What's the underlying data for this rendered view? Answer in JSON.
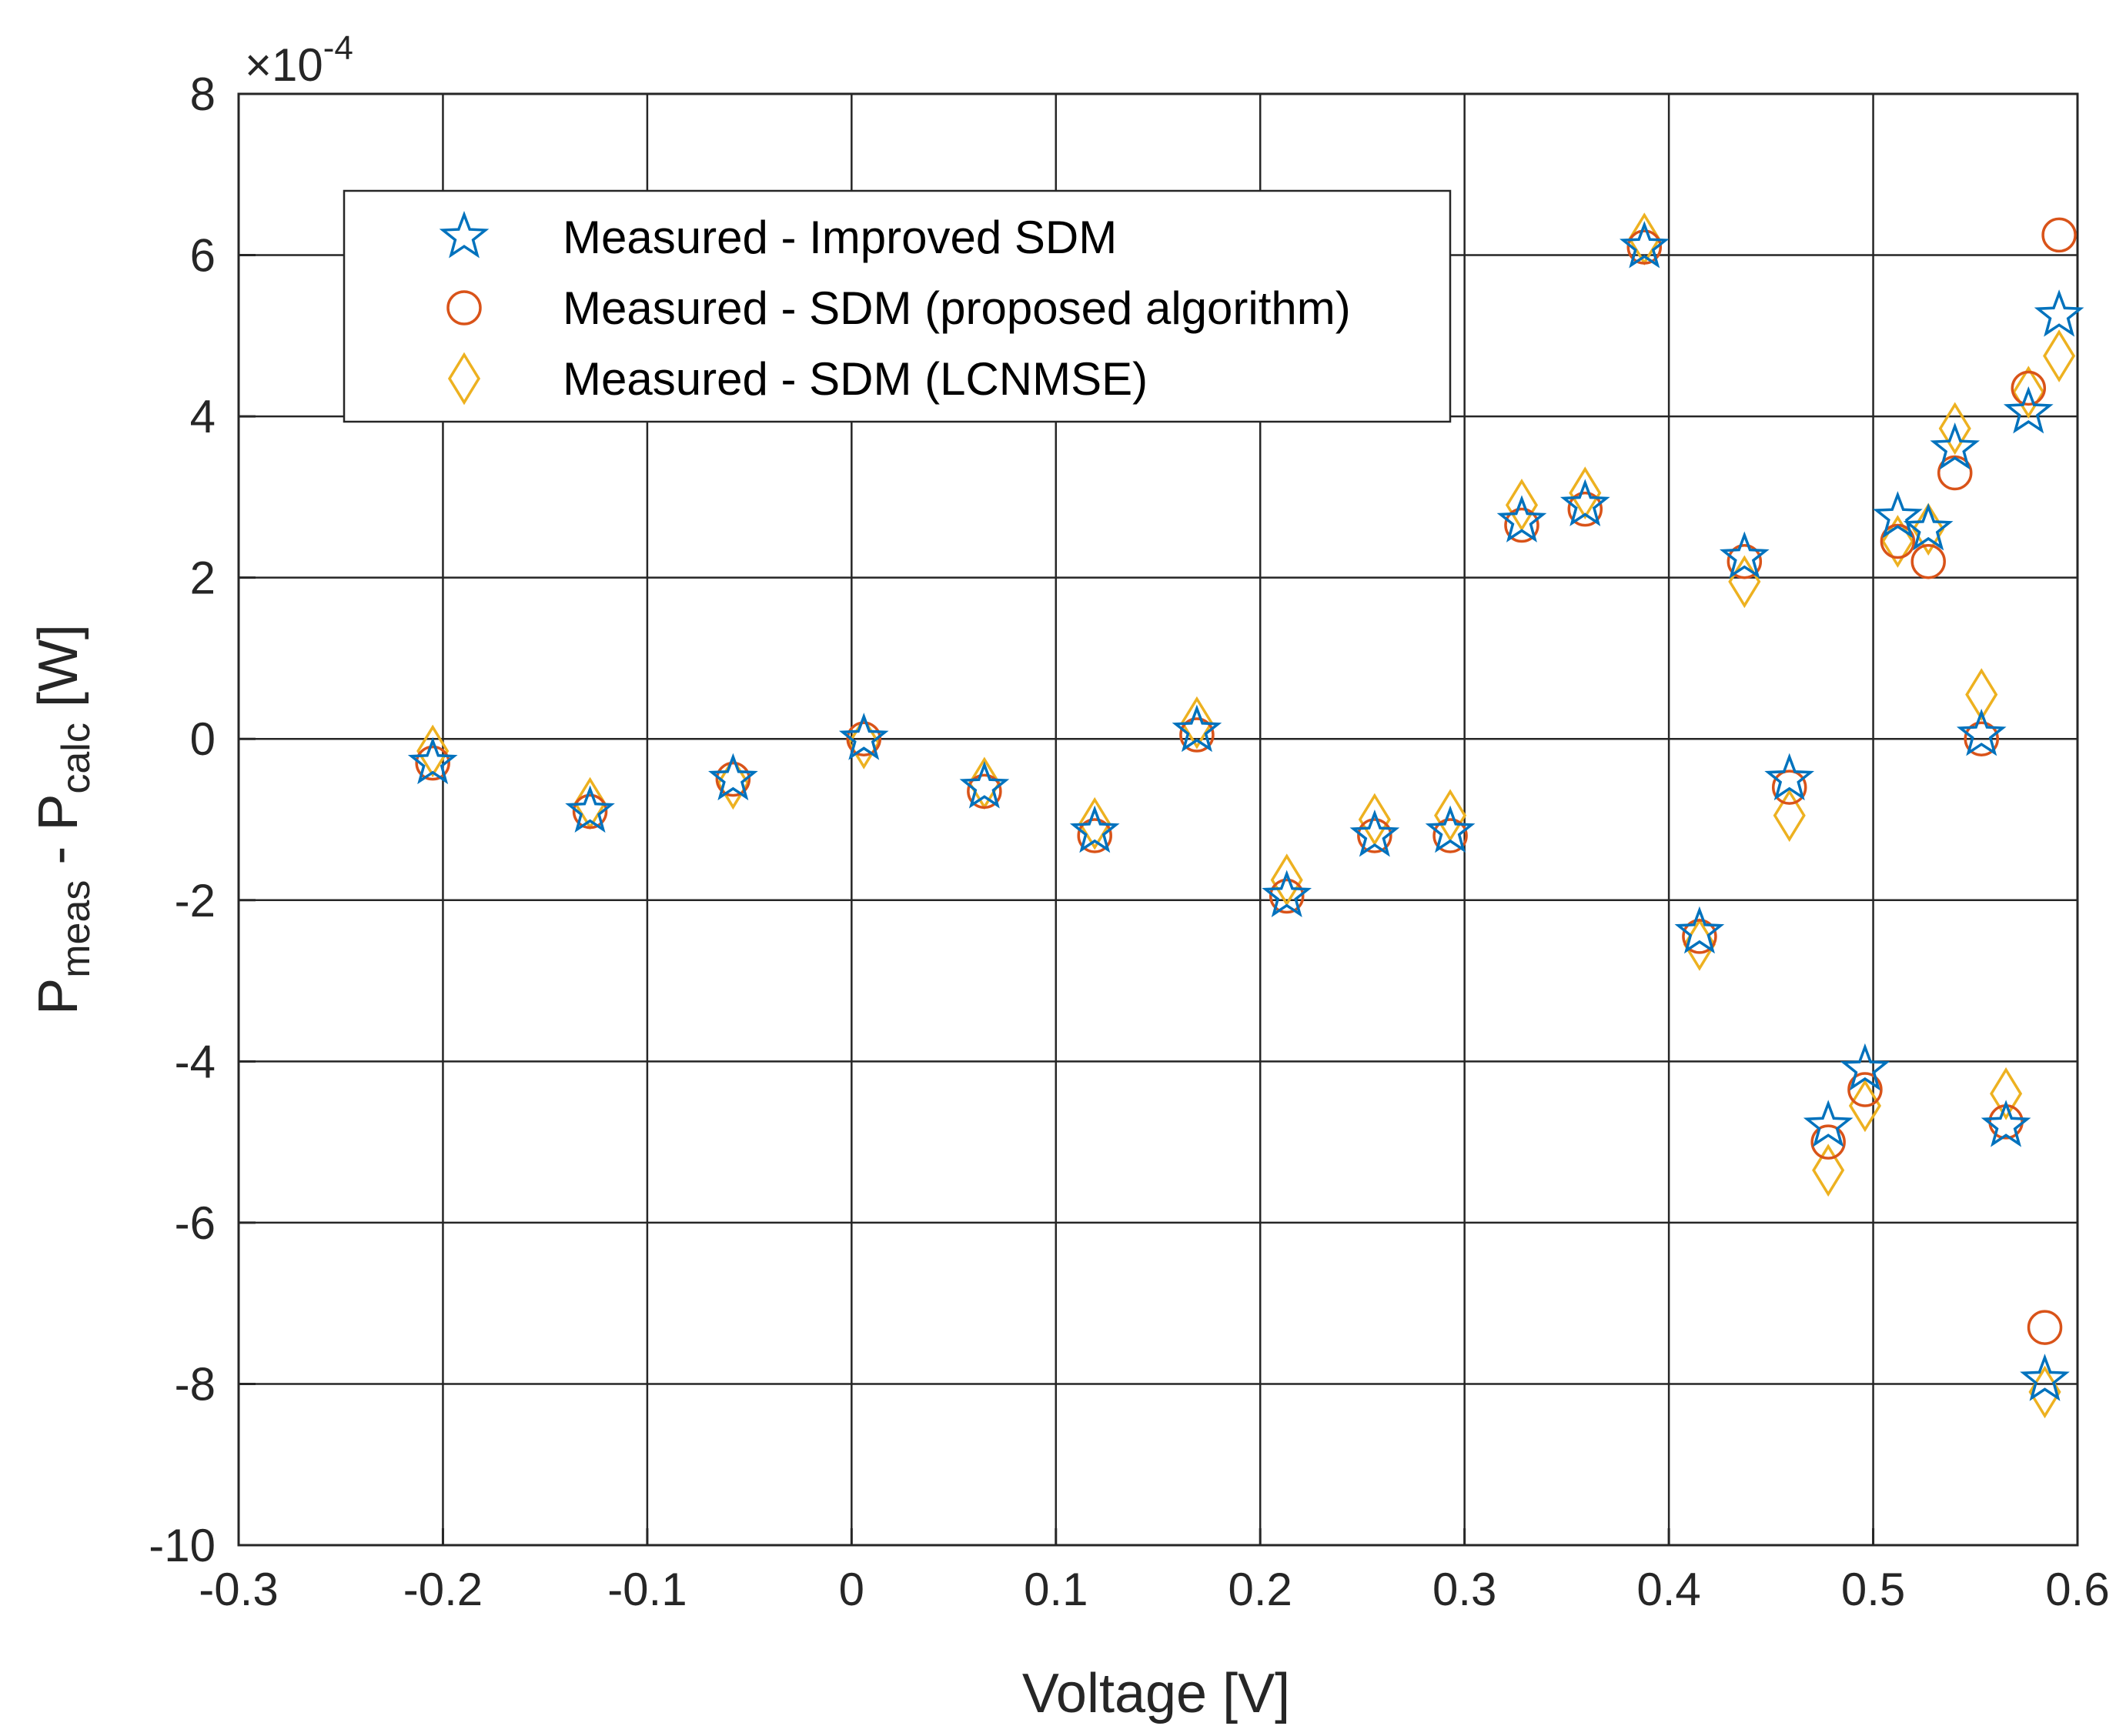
{
  "chart_data": {
    "type": "scatter",
    "title": "",
    "xlabel": "Voltage [V]",
    "ylabel": {
      "base1": "P",
      "sub1": "meas",
      "mid": " - P",
      "sub2": "calc",
      "tail": " [W]"
    },
    "xlim": [
      -0.3,
      0.6
    ],
    "ylim": [
      -10,
      8
    ],
    "y_multiplier": {
      "base": "×10",
      "exp": "-4"
    },
    "xticks": [
      -0.3,
      -0.2,
      -0.1,
      0,
      0.1,
      0.2,
      0.3,
      0.4,
      0.5,
      0.6
    ],
    "xtick_labels": [
      "-0.3",
      "-0.2",
      "-0.1",
      "0",
      "0.1",
      "0.2",
      "0.3",
      "0.4",
      "0.5",
      "0.6"
    ],
    "yticks": [
      -10,
      -8,
      -6,
      -4,
      -2,
      0,
      2,
      4,
      6,
      8
    ],
    "ytick_labels": [
      "-10",
      "-8",
      "-6",
      "-4",
      "-2",
      "0",
      "2",
      "4",
      "6",
      "8"
    ],
    "grid": true,
    "legend_position": "top-left",
    "x": [
      -0.205,
      -0.128,
      -0.058,
      0.006,
      0.065,
      0.119,
      0.169,
      0.213,
      0.256,
      0.293,
      0.328,
      0.359,
      0.388,
      0.415,
      0.437,
      0.459,
      0.478,
      0.496,
      0.512,
      0.527,
      0.54,
      0.553,
      0.565,
      0.576,
      0.584,
      0.591
    ],
    "series": [
      {
        "name": "Measured - Improved SDM",
        "marker": "star",
        "color": "#0072BD",
        "values": [
          -0.3,
          -0.9,
          -0.5,
          0.0,
          -0.6,
          -1.15,
          0.1,
          -1.95,
          -1.2,
          -1.15,
          2.7,
          2.9,
          6.1,
          -2.4,
          2.25,
          -0.5,
          -4.8,
          -4.1,
          2.75,
          2.6,
          3.6,
          0.05,
          -4.8,
          4.05,
          -7.95,
          5.25
        ]
      },
      {
        "name": "Measured - SDM (proposed algorithm)",
        "marker": "circle",
        "color": "#D95319",
        "values": [
          -0.3,
          -0.9,
          -0.5,
          0.0,
          -0.65,
          -1.2,
          0.05,
          -1.95,
          -1.2,
          -1.2,
          2.65,
          2.85,
          6.1,
          -2.45,
          2.2,
          -0.6,
          -5.0,
          -4.35,
          2.45,
          2.2,
          3.3,
          0.0,
          -4.75,
          4.35,
          -7.3,
          6.25
        ]
      },
      {
        "name": "Measured - SDM (LCNMSE)",
        "marker": "diamond",
        "color": "#EDB120",
        "values": [
          -0.15,
          -0.8,
          -0.55,
          -0.05,
          -0.55,
          -1.05,
          0.2,
          -1.75,
          -1.0,
          -0.95,
          2.9,
          3.05,
          6.2,
          -2.55,
          1.95,
          -0.95,
          -5.35,
          -4.55,
          2.45,
          2.6,
          3.85,
          0.55,
          -4.4,
          4.3,
          -8.1,
          4.75
        ]
      }
    ]
  }
}
